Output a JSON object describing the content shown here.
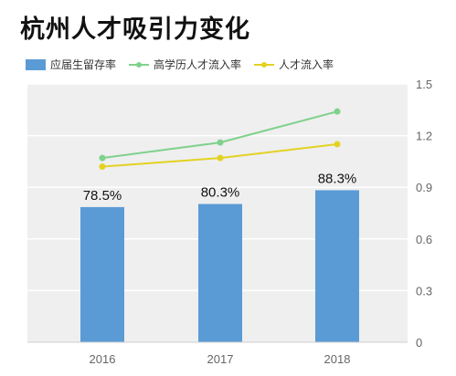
{
  "title": "杭州人才吸引力变化",
  "colors": {
    "bar": "#5b9bd5",
    "high_edu_line": "#7fd18c",
    "talent_line": "#e3d222",
    "plot_bg": "#efefef",
    "grid": "#ffffff",
    "axis_text": "#666666"
  },
  "chart_data": {
    "type": "bar",
    "categories": [
      "2016",
      "2017",
      "2018"
    ],
    "series": [
      {
        "name": "应届生留存率",
        "type": "bar",
        "values": [
          0.785,
          0.803,
          0.883
        ],
        "data_labels": [
          "78.5%",
          "80.3%",
          "88.3%"
        ]
      },
      {
        "name": "高学历人才流入率",
        "type": "line",
        "values": [
          1.07,
          1.16,
          1.34
        ]
      },
      {
        "name": "人才流入率",
        "type": "line",
        "values": [
          1.02,
          1.07,
          1.15
        ]
      }
    ],
    "y_axis": {
      "position": "right",
      "range": [
        0,
        1.5
      ],
      "ticks": [
        "0",
        "0.3",
        "0.6",
        "0.9",
        "1.2",
        "1.5"
      ]
    },
    "legend": "top-left",
    "grid": true
  }
}
